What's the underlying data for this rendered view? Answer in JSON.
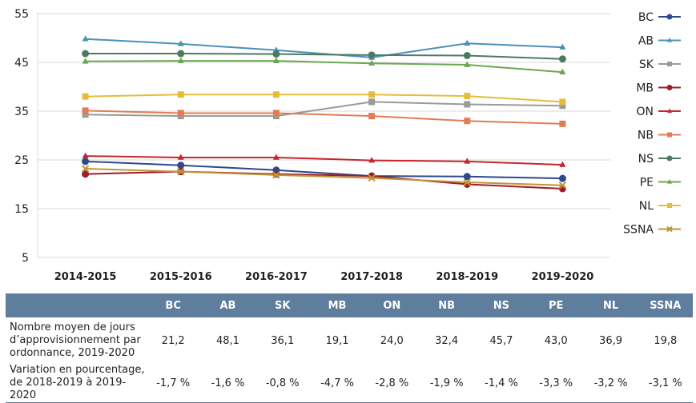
{
  "chart_data": {
    "type": "line",
    "title": "",
    "xlabel": "",
    "ylabel": "",
    "ylim": [
      5,
      55
    ],
    "yticks": [
      5,
      15,
      25,
      35,
      45,
      55
    ],
    "grid": true,
    "legend_position": "right",
    "categories": [
      "2014-2015",
      "2015-2016",
      "2016-2017",
      "2017-2018",
      "2018-2019",
      "2019-2020"
    ],
    "series": [
      {
        "name": "BC",
        "color": "#2e4a8a",
        "marker": "circle",
        "values": [
          24.7,
          23.9,
          22.9,
          21.7,
          21.6,
          21.2
        ]
      },
      {
        "name": "AB",
        "color": "#4a90b8",
        "marker": "triangle",
        "values": [
          49.8,
          48.8,
          47.5,
          46.0,
          48.9,
          48.1
        ]
      },
      {
        "name": "SK",
        "color": "#9a9a96",
        "marker": "square",
        "values": [
          34.3,
          34.0,
          34.0,
          36.9,
          36.4,
          36.1
        ]
      },
      {
        "name": "MB",
        "color": "#a01c26",
        "marker": "circle",
        "values": [
          22.1,
          22.6,
          22.1,
          21.7,
          20.0,
          19.1
        ]
      },
      {
        "name": "ON",
        "color": "#c8262f",
        "marker": "triangle",
        "values": [
          25.8,
          25.5,
          25.5,
          24.9,
          24.7,
          24.0
        ]
      },
      {
        "name": "NB",
        "color": "#e07d57",
        "marker": "square",
        "values": [
          35.1,
          34.6,
          34.6,
          34.0,
          33.0,
          32.4
        ]
      },
      {
        "name": "NS",
        "color": "#4e7a62",
        "marker": "circle",
        "values": [
          46.8,
          46.8,
          46.7,
          46.5,
          46.4,
          45.7
        ]
      },
      {
        "name": "PE",
        "color": "#6aa84f",
        "marker": "triangle",
        "values": [
          45.2,
          45.3,
          45.3,
          44.8,
          44.5,
          43.0
        ]
      },
      {
        "name": "NL",
        "color": "#e6bd3a",
        "marker": "square",
        "values": [
          38.0,
          38.4,
          38.4,
          38.4,
          38.1,
          36.9
        ]
      },
      {
        "name": "SSNA",
        "color": "#c0953a",
        "marker": "x",
        "values": [
          23.2,
          22.6,
          21.9,
          21.3,
          20.4,
          19.8
        ]
      }
    ]
  },
  "table": {
    "header_blank": "",
    "columns": [
      "BC",
      "AB",
      "SK",
      "MB",
      "ON",
      "NB",
      "NS",
      "PE",
      "NL",
      "SSNA"
    ],
    "rows": [
      {
        "label": "Nombre moyen de jours d’approvisionnement par ordonnance, 2019-2020",
        "values": [
          "21,2",
          "48,1",
          "36,1",
          "19,1",
          "24,0",
          "32,4",
          "45,7",
          "43,0",
          "36,9",
          "19,8"
        ]
      },
      {
        "label": "Variation en pourcentage, de 2018-2019 à 2019-2020",
        "values": [
          "-1,7 %",
          "-1,6 %",
          "-0,8 %",
          "-4,7 %",
          "-2,8 %",
          "-1,9 %",
          "-1,4 %",
          "-3,3 %",
          "-3,2 %",
          "-3,1 %"
        ]
      }
    ]
  },
  "colors": {
    "header_band": "#5f7d9c",
    "gridline": "#d9d9d9"
  }
}
